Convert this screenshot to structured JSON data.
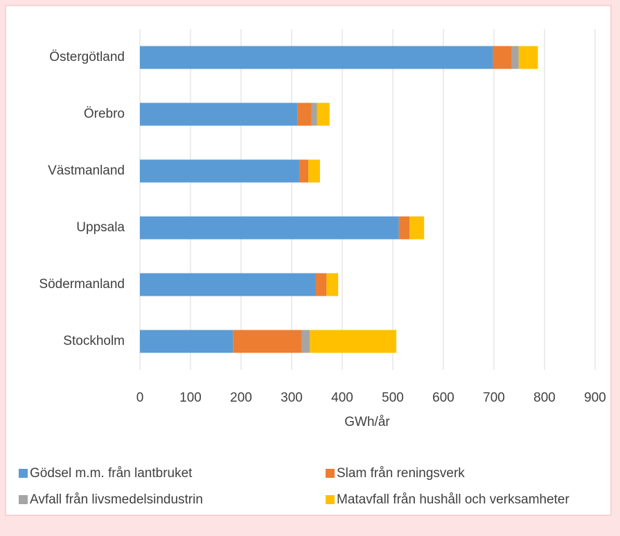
{
  "chart_data": {
    "type": "stacked-bar-horizontal",
    "categories": [
      "Östergötland",
      "Örebro",
      "Västmanland",
      "Uppsala",
      "Södermanland",
      "Stockholm"
    ],
    "series": [
      {
        "name": "Gödsel m.m. från lantbruket",
        "color": "#5b9bd5",
        "values": [
          698,
          312,
          315,
          512,
          348,
          184
        ]
      },
      {
        "name": "Slam från reningsverk",
        "color": "#ed7d31",
        "values": [
          37,
          27,
          18,
          21,
          21,
          136
        ]
      },
      {
        "name": "Avfall från livsmedelsindustrin",
        "color": "#a5a5a5",
        "values": [
          14,
          11,
          0,
          0,
          0,
          16
        ]
      },
      {
        "name": "Matavfall från hushåll och verksamheter",
        "color": "#ffc000",
        "values": [
          38,
          25,
          23,
          29,
          23,
          171
        ]
      }
    ],
    "xlabel": "GWh/år",
    "xlim": [
      0,
      900
    ],
    "xticks": [
      0,
      100,
      200,
      300,
      400,
      500,
      600,
      700,
      800,
      900
    ],
    "grid": true
  }
}
